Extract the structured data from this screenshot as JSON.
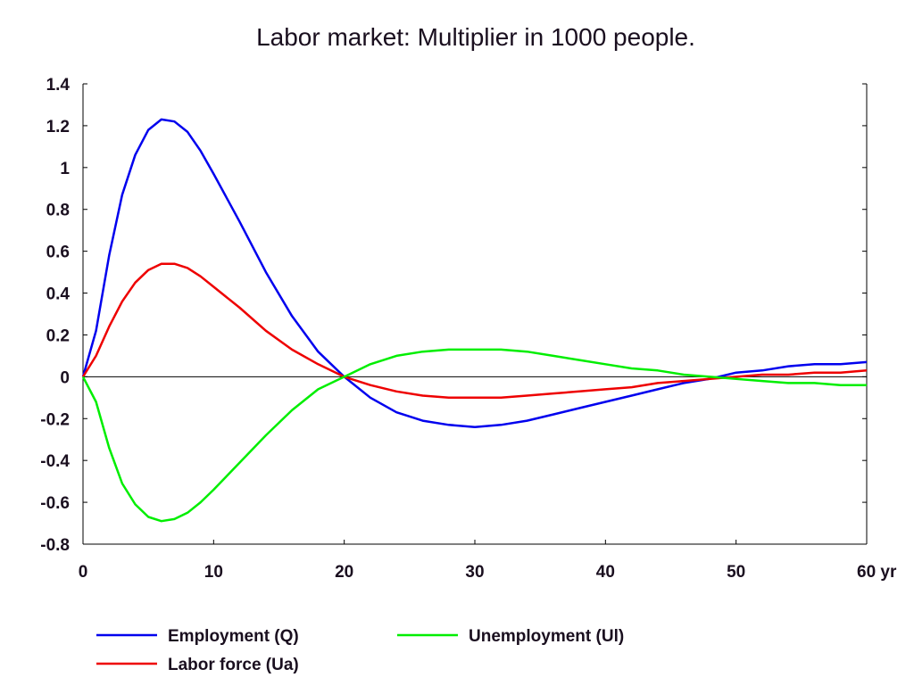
{
  "chart_data": {
    "type": "line",
    "title": "Labor market: Multiplier in 1000 people.",
    "xlabel": "",
    "ylabel": "",
    "xlim": [
      0,
      60
    ],
    "ylim": [
      -0.8,
      1.4
    ],
    "x_ticks": [
      0,
      10,
      20,
      30,
      40,
      50,
      60
    ],
    "x_tick_labels": [
      "0",
      "10",
      "20",
      "30",
      "40",
      "50",
      "60 yr"
    ],
    "y_ticks": [
      1.4,
      1.2,
      1,
      0.8,
      0.6,
      0.4,
      0.2,
      0,
      -0.2,
      -0.4,
      -0.6,
      -0.8
    ],
    "y_tick_labels": [
      "1.4",
      "1.2",
      "1",
      "0.8",
      "0.6",
      "0.4",
      "0.2",
      "0",
      "-0.2",
      "-0.4",
      "-0.6",
      "-0.8"
    ],
    "grid": false,
    "zero_line": true,
    "legend_position": "bottom",
    "x": [
      0,
      1,
      2,
      3,
      4,
      5,
      6,
      7,
      8,
      9,
      10,
      12,
      14,
      16,
      18,
      20,
      22,
      24,
      26,
      28,
      30,
      32,
      34,
      36,
      38,
      40,
      42,
      44,
      46,
      48,
      50,
      52,
      54,
      56,
      58,
      60
    ],
    "series": [
      {
        "name": "Employment (Q)",
        "color": "#0000ee",
        "values": [
          0,
          0.22,
          0.58,
          0.87,
          1.06,
          1.18,
          1.23,
          1.22,
          1.17,
          1.08,
          0.97,
          0.74,
          0.5,
          0.29,
          0.12,
          0,
          -0.1,
          -0.17,
          -0.21,
          -0.23,
          -0.24,
          -0.23,
          -0.21,
          -0.18,
          -0.15,
          -0.12,
          -0.09,
          -0.06,
          -0.03,
          -0.01,
          0.02,
          0.03,
          0.05,
          0.06,
          0.06,
          0.07
        ]
      },
      {
        "name": "Labor force (Ua)",
        "color": "#ee0000",
        "values": [
          0,
          0.1,
          0.24,
          0.36,
          0.45,
          0.51,
          0.54,
          0.54,
          0.52,
          0.48,
          0.43,
          0.33,
          0.22,
          0.13,
          0.06,
          0,
          -0.04,
          -0.07,
          -0.09,
          -0.1,
          -0.1,
          -0.1,
          -0.09,
          -0.08,
          -0.07,
          -0.06,
          -0.05,
          -0.03,
          -0.02,
          -0.01,
          0,
          0.01,
          0.01,
          0.02,
          0.02,
          0.03
        ]
      },
      {
        "name": "Unemployment (Ul)",
        "color": "#00ee00",
        "values": [
          0,
          -0.12,
          -0.34,
          -0.51,
          -0.61,
          -0.67,
          -0.69,
          -0.68,
          -0.65,
          -0.6,
          -0.54,
          -0.41,
          -0.28,
          -0.16,
          -0.06,
          0,
          0.06,
          0.1,
          0.12,
          0.13,
          0.13,
          0.13,
          0.12,
          0.1,
          0.08,
          0.06,
          0.04,
          0.03,
          0.01,
          0,
          -0.01,
          -0.02,
          -0.03,
          -0.03,
          -0.04,
          -0.04
        ]
      }
    ]
  }
}
